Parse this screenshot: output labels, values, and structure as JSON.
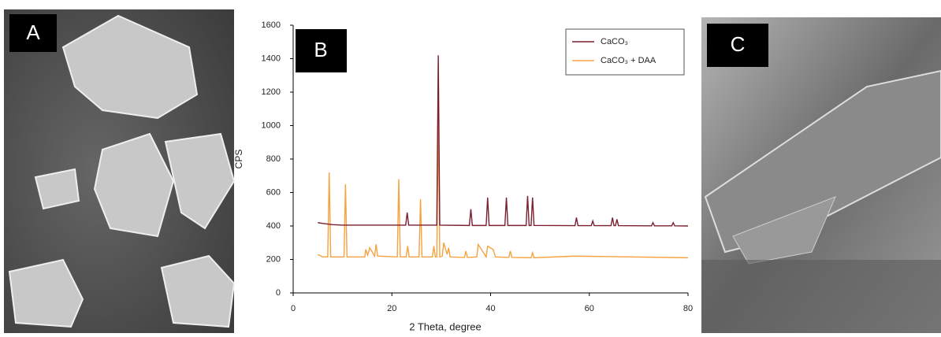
{
  "panel_labels": [
    "A",
    "B",
    "C"
  ],
  "chart_data": {
    "type": "line",
    "xlabel": "2 Theta, degree",
    "ylabel": "CPS",
    "xlim": [
      0,
      80
    ],
    "xticks": [
      0,
      20,
      40,
      60,
      80
    ],
    "ylim": [
      0,
      1600
    ],
    "yticks": [
      0,
      200,
      400,
      600,
      800,
      1000,
      1200,
      1400,
      1600
    ],
    "legend": "upper right",
    "series": [
      {
        "name": "CaCO₃",
        "color": "#7a1f2f",
        "x": [
          5,
          6,
          8,
          10,
          22.8,
          23.1,
          23.4,
          29.1,
          29.4,
          29.7,
          35.7,
          36,
          36.3,
          39.1,
          39.4,
          39.7,
          42.9,
          43.2,
          43.5,
          47.2,
          47.5,
          47.8,
          48.2,
          48.5,
          48.8,
          57.1,
          57.4,
          57.7,
          60.4,
          60.7,
          61,
          64.4,
          64.7,
          65,
          65.3,
          65.6,
          65.9,
          72.6,
          72.9,
          73.2,
          76.7,
          77,
          77.3,
          80
        ],
        "values": [
          420,
          415,
          408,
          405,
          405,
          480,
          405,
          405,
          1420,
          405,
          403,
          500,
          403,
          403,
          570,
          403,
          403,
          570,
          403,
          403,
          580,
          403,
          403,
          570,
          403,
          402,
          450,
          402,
          402,
          430,
          402,
          402,
          450,
          402,
          402,
          440,
          402,
          401,
          420,
          401,
          401,
          420,
          401,
          400
        ]
      },
      {
        "name": "CaCO₃ + DAA",
        "color": "#f5a340",
        "x": [
          5,
          6,
          7,
          7.3,
          7.6,
          10.3,
          10.6,
          10.9,
          14.5,
          14.7,
          15.1,
          15.5,
          16.5,
          16.8,
          17.1,
          21.1,
          21.4,
          21.7,
          22.9,
          23.2,
          23.5,
          25.5,
          25.8,
          26.1,
          28.2,
          28.5,
          28.8,
          29.1,
          29.4,
          29.7,
          30.2,
          30.5,
          31.2,
          31.5,
          31.8,
          34.7,
          35,
          35.3,
          37.2,
          37.5,
          39.1,
          39.4,
          40.5,
          41,
          43.7,
          44,
          44.3,
          48.2,
          48.5,
          48.8,
          57,
          80
        ],
        "values": [
          230,
          215,
          215,
          720,
          215,
          215,
          650,
          215,
          215,
          260,
          225,
          270,
          220,
          290,
          220,
          215,
          680,
          215,
          215,
          280,
          215,
          215,
          560,
          215,
          215,
          280,
          215,
          215,
          1040,
          215,
          220,
          300,
          230,
          270,
          215,
          212,
          250,
          212,
          215,
          290,
          215,
          280,
          260,
          215,
          212,
          250,
          212,
          210,
          240,
          210,
          220,
          210
        ]
      }
    ]
  }
}
